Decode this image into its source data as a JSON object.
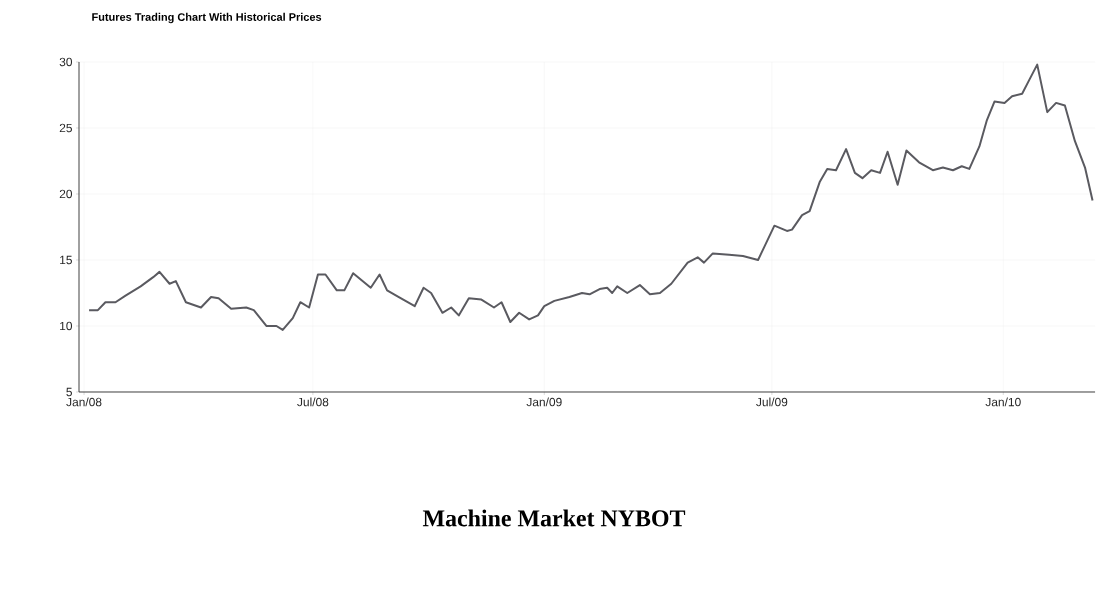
{
  "chart_data": {
    "type": "line",
    "title": "Futures Trading Chart With Historical Prices",
    "annotations": [
      "Machine Market NYBOT"
    ],
    "x": [
      "2008-01-05",
      "2008-01-12",
      "2008-01-18",
      "2008-01-26",
      "2008-02-03",
      "2008-02-15",
      "2008-02-25",
      "2008-03-01",
      "2008-03-09",
      "2008-03-14",
      "2008-03-22",
      "2008-04-03",
      "2008-04-11",
      "2008-04-17",
      "2008-04-27",
      "2008-05-09",
      "2008-05-15",
      "2008-05-25",
      "2008-06-02",
      "2008-06-07",
      "2008-06-15",
      "2008-06-21",
      "2008-06-28",
      "2008-07-05",
      "2008-07-11",
      "2008-07-20",
      "2008-07-26",
      "2008-08-02",
      "2008-08-16",
      "2008-08-23",
      "2008-08-29",
      "2008-09-07",
      "2008-09-20",
      "2008-09-27",
      "2008-10-03",
      "2008-10-12",
      "2008-10-19",
      "2008-10-25",
      "2008-11-02",
      "2008-11-12",
      "2008-11-22",
      "2008-11-28",
      "2008-12-05",
      "2008-12-12",
      "2008-12-20",
      "2008-12-27",
      "2009-01-01",
      "2009-01-09",
      "2009-01-21",
      "2009-01-31",
      "2009-02-06",
      "2009-02-14",
      "2009-02-20",
      "2009-02-24",
      "2009-02-28",
      "2009-03-08",
      "2009-03-18",
      "2009-03-26",
      "2009-04-03",
      "2009-04-12",
      "2009-04-25",
      "2009-05-03",
      "2009-05-08",
      "2009-05-15",
      "2009-05-28",
      "2009-06-08",
      "2009-06-20",
      "2009-07-03",
      "2009-07-13",
      "2009-07-17",
      "2009-07-25",
      "2009-07-31",
      "2009-08-08",
      "2009-08-14",
      "2009-08-21",
      "2009-08-29",
      "2009-09-05",
      "2009-09-11",
      "2009-09-18",
      "2009-09-25",
      "2009-10-01",
      "2009-10-09",
      "2009-10-16",
      "2009-10-26",
      "2009-11-06",
      "2009-11-14",
      "2009-11-22",
      "2009-11-29",
      "2009-12-05",
      "2009-12-13",
      "2009-12-19",
      "2009-12-25",
      "2010-01-02",
      "2010-01-08",
      "2010-01-16",
      "2010-01-22",
      "2010-01-28",
      "2010-02-05",
      "2010-02-12",
      "2010-02-19",
      "2010-02-27",
      "2010-03-07",
      "2010-03-13"
    ],
    "values": [
      11.2,
      11.2,
      11.8,
      11.8,
      12.3,
      13.0,
      13.7,
      14.1,
      13.2,
      13.4,
      11.8,
      11.4,
      12.2,
      12.1,
      11.3,
      11.4,
      11.2,
      10.0,
      10.0,
      9.7,
      10.6,
      11.8,
      11.4,
      13.9,
      13.9,
      12.7,
      12.7,
      14.0,
      12.9,
      13.9,
      12.7,
      12.2,
      11.5,
      12.9,
      12.5,
      11.0,
      11.4,
      10.8,
      12.1,
      12.0,
      11.4,
      11.8,
      10.3,
      11.0,
      10.5,
      10.8,
      11.5,
      11.9,
      12.2,
      12.5,
      12.4,
      12.8,
      12.9,
      12.5,
      13.0,
      12.5,
      13.1,
      12.4,
      12.5,
      13.2,
      14.8,
      15.2,
      14.8,
      15.5,
      15.4,
      15.3,
      15.0,
      17.6,
      17.2,
      17.3,
      18.4,
      18.7,
      20.9,
      21.9,
      21.8,
      23.4,
      21.6,
      21.2,
      21.8,
      21.6,
      23.2,
      20.7,
      23.3,
      22.4,
      21.8,
      22.0,
      21.8,
      22.1,
      21.9,
      23.6,
      25.6,
      27.0,
      26.9,
      27.4,
      27.6,
      28.7,
      29.8,
      26.2,
      26.9,
      26.7,
      24.0,
      22.0,
      19.5
    ],
    "color": "#5a5a60",
    "xlim": [
      "2007-12-28",
      "2010-03-15"
    ],
    "xticks": [
      {
        "value": "2008-01-01",
        "label": "Jan/08"
      },
      {
        "value": "2008-07-01",
        "label": "Jul/08"
      },
      {
        "value": "2009-01-01",
        "label": "Jan/09"
      },
      {
        "value": "2009-07-01",
        "label": "Jul/09"
      },
      {
        "value": "2010-01-01",
        "label": "Jan/10"
      }
    ],
    "ylim": [
      5,
      30
    ],
    "yticks": [
      5,
      10,
      15,
      20,
      25,
      30
    ],
    "grid": true,
    "marker": "none",
    "line_style": "solid"
  }
}
